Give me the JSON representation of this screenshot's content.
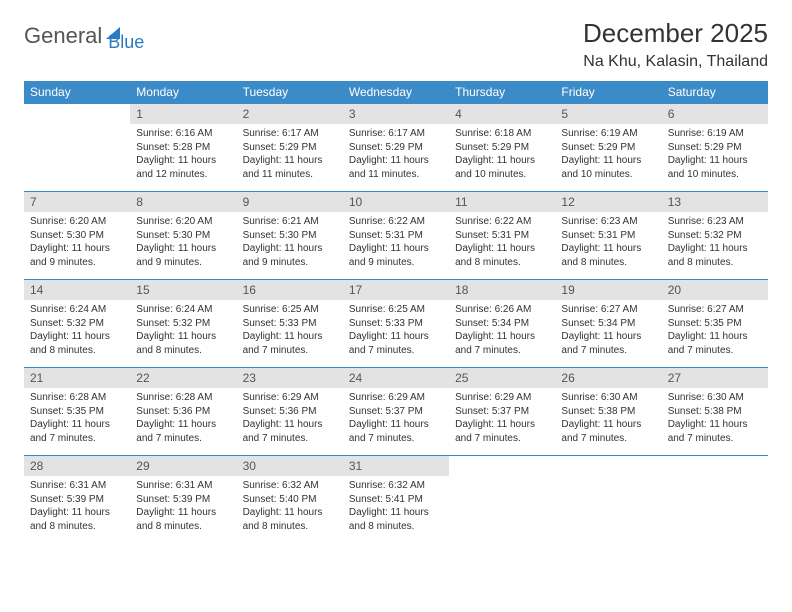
{
  "brand": {
    "part1": "General",
    "part2": "Blue"
  },
  "title": "December 2025",
  "location": "Na Khu, Kalasin, Thailand",
  "colors": {
    "header_bg": "#3b8bc8",
    "header_fg": "#ffffff",
    "daynum_bg": "#e3e3e3",
    "border": "#3b8bc8",
    "text": "#333333",
    "brand_gray": "#555555",
    "brand_blue": "#2a7bbf",
    "page_bg": "#ffffff"
  },
  "weekdays": [
    "Sunday",
    "Monday",
    "Tuesday",
    "Wednesday",
    "Thursday",
    "Friday",
    "Saturday"
  ],
  "weeks": [
    [
      {
        "n": "",
        "lines": []
      },
      {
        "n": "1",
        "lines": [
          "Sunrise: 6:16 AM",
          "Sunset: 5:28 PM",
          "Daylight: 11 hours",
          "and 12 minutes."
        ]
      },
      {
        "n": "2",
        "lines": [
          "Sunrise: 6:17 AM",
          "Sunset: 5:29 PM",
          "Daylight: 11 hours",
          "and 11 minutes."
        ]
      },
      {
        "n": "3",
        "lines": [
          "Sunrise: 6:17 AM",
          "Sunset: 5:29 PM",
          "Daylight: 11 hours",
          "and 11 minutes."
        ]
      },
      {
        "n": "4",
        "lines": [
          "Sunrise: 6:18 AM",
          "Sunset: 5:29 PM",
          "Daylight: 11 hours",
          "and 10 minutes."
        ]
      },
      {
        "n": "5",
        "lines": [
          "Sunrise: 6:19 AM",
          "Sunset: 5:29 PM",
          "Daylight: 11 hours",
          "and 10 minutes."
        ]
      },
      {
        "n": "6",
        "lines": [
          "Sunrise: 6:19 AM",
          "Sunset: 5:29 PM",
          "Daylight: 11 hours",
          "and 10 minutes."
        ]
      }
    ],
    [
      {
        "n": "7",
        "lines": [
          "Sunrise: 6:20 AM",
          "Sunset: 5:30 PM",
          "Daylight: 11 hours",
          "and 9 minutes."
        ]
      },
      {
        "n": "8",
        "lines": [
          "Sunrise: 6:20 AM",
          "Sunset: 5:30 PM",
          "Daylight: 11 hours",
          "and 9 minutes."
        ]
      },
      {
        "n": "9",
        "lines": [
          "Sunrise: 6:21 AM",
          "Sunset: 5:30 PM",
          "Daylight: 11 hours",
          "and 9 minutes."
        ]
      },
      {
        "n": "10",
        "lines": [
          "Sunrise: 6:22 AM",
          "Sunset: 5:31 PM",
          "Daylight: 11 hours",
          "and 9 minutes."
        ]
      },
      {
        "n": "11",
        "lines": [
          "Sunrise: 6:22 AM",
          "Sunset: 5:31 PM",
          "Daylight: 11 hours",
          "and 8 minutes."
        ]
      },
      {
        "n": "12",
        "lines": [
          "Sunrise: 6:23 AM",
          "Sunset: 5:31 PM",
          "Daylight: 11 hours",
          "and 8 minutes."
        ]
      },
      {
        "n": "13",
        "lines": [
          "Sunrise: 6:23 AM",
          "Sunset: 5:32 PM",
          "Daylight: 11 hours",
          "and 8 minutes."
        ]
      }
    ],
    [
      {
        "n": "14",
        "lines": [
          "Sunrise: 6:24 AM",
          "Sunset: 5:32 PM",
          "Daylight: 11 hours",
          "and 8 minutes."
        ]
      },
      {
        "n": "15",
        "lines": [
          "Sunrise: 6:24 AM",
          "Sunset: 5:32 PM",
          "Daylight: 11 hours",
          "and 8 minutes."
        ]
      },
      {
        "n": "16",
        "lines": [
          "Sunrise: 6:25 AM",
          "Sunset: 5:33 PM",
          "Daylight: 11 hours",
          "and 7 minutes."
        ]
      },
      {
        "n": "17",
        "lines": [
          "Sunrise: 6:25 AM",
          "Sunset: 5:33 PM",
          "Daylight: 11 hours",
          "and 7 minutes."
        ]
      },
      {
        "n": "18",
        "lines": [
          "Sunrise: 6:26 AM",
          "Sunset: 5:34 PM",
          "Daylight: 11 hours",
          "and 7 minutes."
        ]
      },
      {
        "n": "19",
        "lines": [
          "Sunrise: 6:27 AM",
          "Sunset: 5:34 PM",
          "Daylight: 11 hours",
          "and 7 minutes."
        ]
      },
      {
        "n": "20",
        "lines": [
          "Sunrise: 6:27 AM",
          "Sunset: 5:35 PM",
          "Daylight: 11 hours",
          "and 7 minutes."
        ]
      }
    ],
    [
      {
        "n": "21",
        "lines": [
          "Sunrise: 6:28 AM",
          "Sunset: 5:35 PM",
          "Daylight: 11 hours",
          "and 7 minutes."
        ]
      },
      {
        "n": "22",
        "lines": [
          "Sunrise: 6:28 AM",
          "Sunset: 5:36 PM",
          "Daylight: 11 hours",
          "and 7 minutes."
        ]
      },
      {
        "n": "23",
        "lines": [
          "Sunrise: 6:29 AM",
          "Sunset: 5:36 PM",
          "Daylight: 11 hours",
          "and 7 minutes."
        ]
      },
      {
        "n": "24",
        "lines": [
          "Sunrise: 6:29 AM",
          "Sunset: 5:37 PM",
          "Daylight: 11 hours",
          "and 7 minutes."
        ]
      },
      {
        "n": "25",
        "lines": [
          "Sunrise: 6:29 AM",
          "Sunset: 5:37 PM",
          "Daylight: 11 hours",
          "and 7 minutes."
        ]
      },
      {
        "n": "26",
        "lines": [
          "Sunrise: 6:30 AM",
          "Sunset: 5:38 PM",
          "Daylight: 11 hours",
          "and 7 minutes."
        ]
      },
      {
        "n": "27",
        "lines": [
          "Sunrise: 6:30 AM",
          "Sunset: 5:38 PM",
          "Daylight: 11 hours",
          "and 7 minutes."
        ]
      }
    ],
    [
      {
        "n": "28",
        "lines": [
          "Sunrise: 6:31 AM",
          "Sunset: 5:39 PM",
          "Daylight: 11 hours",
          "and 8 minutes."
        ]
      },
      {
        "n": "29",
        "lines": [
          "Sunrise: 6:31 AM",
          "Sunset: 5:39 PM",
          "Daylight: 11 hours",
          "and 8 minutes."
        ]
      },
      {
        "n": "30",
        "lines": [
          "Sunrise: 6:32 AM",
          "Sunset: 5:40 PM",
          "Daylight: 11 hours",
          "and 8 minutes."
        ]
      },
      {
        "n": "31",
        "lines": [
          "Sunrise: 6:32 AM",
          "Sunset: 5:41 PM",
          "Daylight: 11 hours",
          "and 8 minutes."
        ]
      },
      {
        "n": "",
        "lines": []
      },
      {
        "n": "",
        "lines": []
      },
      {
        "n": "",
        "lines": []
      }
    ]
  ]
}
